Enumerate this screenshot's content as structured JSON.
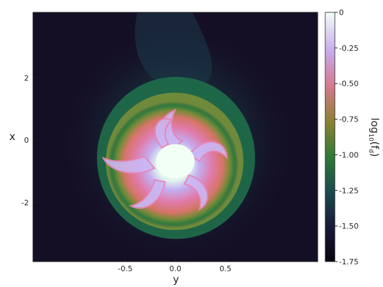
{
  "chart_data": {
    "type": "heatmap",
    "title": "",
    "xlabel": "y",
    "ylabel": "x",
    "colorbar_label_base": "log",
    "colorbar_label_sub": "10",
    "colorbar_label_arg": "(f",
    "colorbar_label_subarg": "d",
    "colorbar_label_close": ")",
    "x_ticks": [
      {
        "value": -0.5,
        "label": "-0.5"
      },
      {
        "value": 0.0,
        "label": "0.0"
      },
      {
        "value": 0.5,
        "label": "0.5"
      }
    ],
    "y_ticks": [
      {
        "value": 2,
        "label": "2"
      },
      {
        "value": 0,
        "label": "0"
      },
      {
        "value": -2,
        "label": "-2"
      }
    ],
    "xlim": [
      -1.42,
      1.42
    ],
    "ylim": [
      -3.9,
      4.1
    ],
    "colorbar_ticks": [
      {
        "value": 0.0,
        "label": "0"
      },
      {
        "value": -0.25,
        "label": "-0.25"
      },
      {
        "value": -0.5,
        "label": "-0.50"
      },
      {
        "value": -0.75,
        "label": "-0.75"
      },
      {
        "value": -1.0,
        "label": "-1.00"
      },
      {
        "value": -1.25,
        "label": "-1.25"
      },
      {
        "value": -1.5,
        "label": "-1.50"
      },
      {
        "value": -1.75,
        "label": "-1.75"
      }
    ],
    "colorbar_range": [
      -1.75,
      0.0
    ],
    "colormap": "cubehelix",
    "blob": {
      "center_x": -0.01,
      "center_y": -0.6,
      "core_value": -0.1,
      "spiral_arms": 6,
      "background_value": -1.75
    },
    "grid": false
  }
}
